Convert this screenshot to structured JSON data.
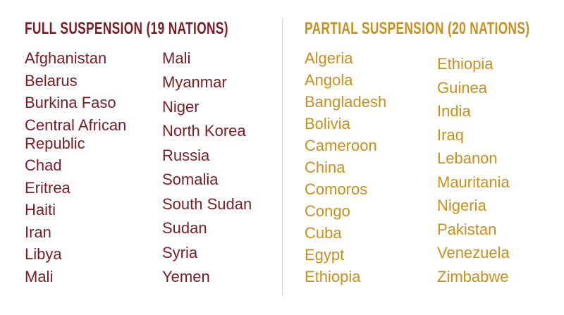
{
  "sections": [
    {
      "title": "FULL SUSPENSION (19 NATIONS)",
      "columns": [
        [
          "Afghanistan",
          "Belarus",
          "Burkina Faso",
          "Central African Republic",
          "Chad",
          "Eritrea",
          "Haiti",
          "Iran",
          "Libya",
          "Mali"
        ],
        [
          "Mali",
          "Myanmar",
          "Niger",
          "North Korea",
          "Russia",
          "Somalia",
          "South Sudan",
          "Sudan",
          "Syria",
          "Yemen"
        ]
      ]
    },
    {
      "title": "PARTIAL SUSPENSION (20 NATIONS)",
      "columns": [
        [
          "Algeria",
          "Angola",
          "Bangladesh",
          "Bolivia",
          "Cameroon",
          "China",
          "Comoros",
          "Congo",
          "Cuba",
          "Egypt",
          "Ethiopia"
        ],
        [
          "Ethiopia",
          "Guinea",
          "India",
          "Iraq",
          "Lebanon",
          "Mauritania",
          "Nigeria",
          "Pakistan",
          "Venezuela",
          "Zimbabwe"
        ]
      ]
    }
  ]
}
